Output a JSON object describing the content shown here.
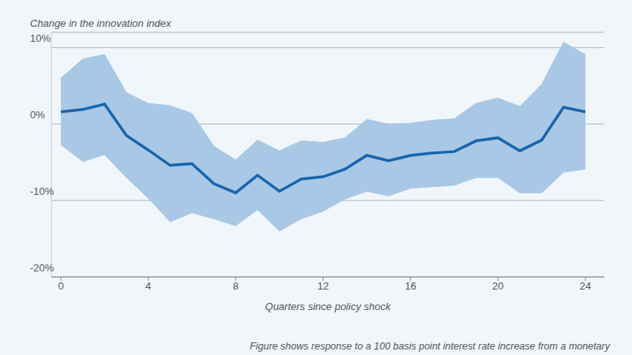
{
  "chart_data": {
    "type": "line",
    "y_label": "Change in the innovation index",
    "x_label": "Quarters since policy shock",
    "caption": "Figure shows response to a 100 basis point interest rate increase from a monetary",
    "x": [
      0,
      1,
      2,
      3,
      4,
      5,
      6,
      7,
      8,
      9,
      10,
      11,
      12,
      13,
      14,
      15,
      16,
      17,
      18,
      19,
      20,
      21,
      22,
      23,
      24
    ],
    "values": [
      1.6,
      1.9,
      2.6,
      -1.5,
      -3.4,
      -5.4,
      -5.2,
      -7.8,
      -9.0,
      -6.7,
      -8.8,
      -7.2,
      -6.9,
      -5.9,
      -4.1,
      -4.8,
      -4.1,
      -3.8,
      -3.6,
      -2.2,
      -1.8,
      -3.5,
      -2.1,
      2.2,
      1.6
    ],
    "lower": [
      -2.7,
      -4.9,
      -4.0,
      -7.0,
      -9.7,
      -12.8,
      -11.6,
      -12.4,
      -13.3,
      -11.2,
      -14.0,
      -12.4,
      -11.4,
      -9.8,
      -8.8,
      -9.4,
      -8.4,
      -8.2,
      -8.0,
      -7.0,
      -7.0,
      -9.0,
      -9.0,
      -6.3,
      -5.9
    ],
    "upper": [
      6.0,
      8.5,
      9.1,
      4.1,
      2.7,
      2.4,
      1.4,
      -2.9,
      -4.7,
      -2.1,
      -3.5,
      -2.2,
      -2.4,
      -1.8,
      0.6,
      0.0,
      0.1,
      0.5,
      0.7,
      2.7,
      3.4,
      2.3,
      5.2,
      10.7,
      9.1
    ],
    "color": "#1565b0",
    "xlim": [
      0,
      24
    ],
    "xticks": [
      0,
      4,
      8,
      12,
      16,
      20,
      24
    ],
    "ylim": [
      -20,
      12
    ],
    "yticks": [
      {
        "value": -20,
        "label": "-20%"
      },
      {
        "value": -10,
        "label": "-10%"
      },
      {
        "value": 0,
        "label": "0%"
      },
      {
        "value": 10,
        "label": "10%"
      }
    ],
    "grid": true
  }
}
